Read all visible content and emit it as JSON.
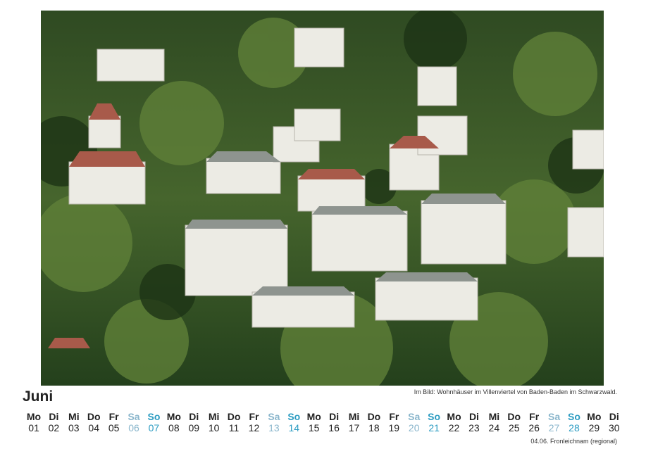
{
  "photo": {
    "subject": "Wohnhäuser im Villenviertel von Baden-Baden im Schwarzwald"
  },
  "month": "Juni",
  "caption": "Im Bild: Wohnhäuser im Villenviertel von Baden-Baden im Schwarzwald.",
  "holiday_note": "04.06. Fronleichnam (regional)",
  "colors": {
    "saturday": "#8ab6cc",
    "sunday": "#2c9cc2",
    "text": "#222222"
  },
  "days": [
    {
      "wd": "Mo",
      "n": "01"
    },
    {
      "wd": "Di",
      "n": "02"
    },
    {
      "wd": "Mi",
      "n": "03"
    },
    {
      "wd": "Do",
      "n": "04"
    },
    {
      "wd": "Fr",
      "n": "05"
    },
    {
      "wd": "Sa",
      "n": "06"
    },
    {
      "wd": "So",
      "n": "07"
    },
    {
      "wd": "Mo",
      "n": "08"
    },
    {
      "wd": "Di",
      "n": "09"
    },
    {
      "wd": "Mi",
      "n": "10"
    },
    {
      "wd": "Do",
      "n": "11"
    },
    {
      "wd": "Fr",
      "n": "12"
    },
    {
      "wd": "Sa",
      "n": "13"
    },
    {
      "wd": "So",
      "n": "14"
    },
    {
      "wd": "Mo",
      "n": "15"
    },
    {
      "wd": "Di",
      "n": "16"
    },
    {
      "wd": "Mi",
      "n": "17"
    },
    {
      "wd": "Do",
      "n": "18"
    },
    {
      "wd": "Fr",
      "n": "19"
    },
    {
      "wd": "Sa",
      "n": "20"
    },
    {
      "wd": "So",
      "n": "21"
    },
    {
      "wd": "Mo",
      "n": "22"
    },
    {
      "wd": "Di",
      "n": "23"
    },
    {
      "wd": "Mi",
      "n": "24"
    },
    {
      "wd": "Do",
      "n": "25"
    },
    {
      "wd": "Fr",
      "n": "26"
    },
    {
      "wd": "Sa",
      "n": "27"
    },
    {
      "wd": "So",
      "n": "28"
    },
    {
      "wd": "Mo",
      "n": "29"
    },
    {
      "wd": "Di",
      "n": "30"
    }
  ]
}
